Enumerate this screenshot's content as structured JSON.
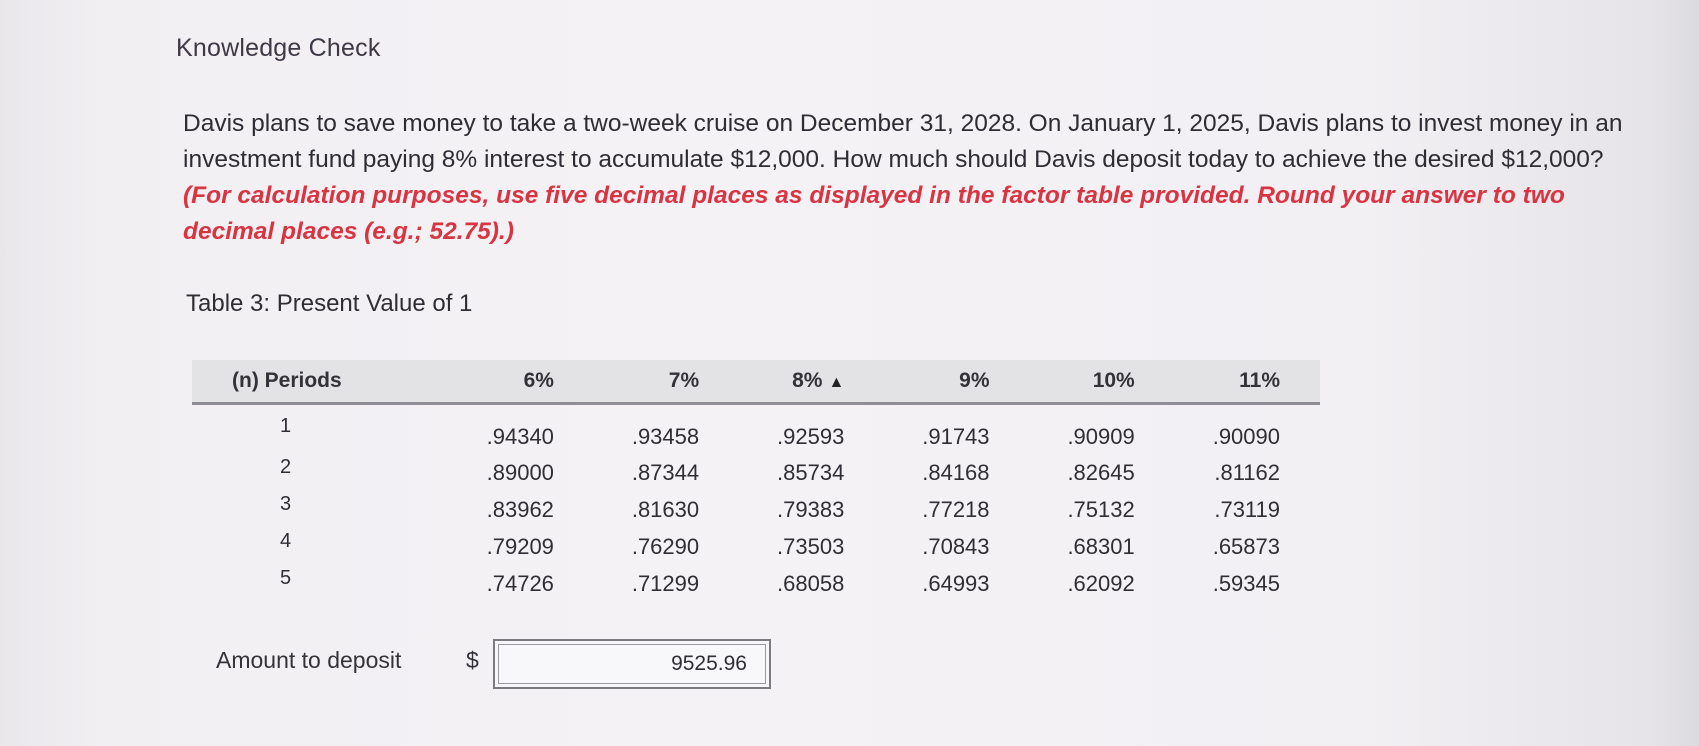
{
  "heading": "Knowledge Check",
  "question": {
    "text": "Davis plans to save money to take a two-week cruise on December 31, 2028. On January 1, 2025, Davis plans to invest money in an investment fund paying 8% interest to accumulate $12,000. How much should Davis deposit today to achieve the desired $12,000? ",
    "instruction": "(For calculation purposes, use five decimal places as displayed in the factor table provided. Round your answer to two decimal places (e.g.; 52.75).)"
  },
  "table": {
    "title": "Table 3: Present Value of 1",
    "headers": [
      "(n) Periods",
      "6%",
      "7%",
      "8%",
      "9%",
      "10%",
      "11%"
    ],
    "rows": [
      {
        "period": "1",
        "values": [
          ".94340",
          ".93458",
          ".92593",
          ".91743",
          ".90909",
          ".90090"
        ]
      },
      {
        "period": "2",
        "values": [
          ".89000",
          ".87344",
          ".85734",
          ".84168",
          ".82645",
          ".81162"
        ]
      },
      {
        "period": "3",
        "values": [
          ".83962",
          ".81630",
          ".79383",
          ".77218",
          ".75132",
          ".73119"
        ]
      },
      {
        "period": "4",
        "values": [
          ".79209",
          ".76290",
          ".73503",
          ".70843",
          ".68301",
          ".65873"
        ]
      },
      {
        "period": "5",
        "values": [
          ".74726",
          ".71299",
          ".68058",
          ".64993",
          ".62092",
          ".59345"
        ]
      }
    ]
  },
  "answer": {
    "label": "Amount to deposit",
    "currency": "$",
    "value": "9525.96"
  }
}
